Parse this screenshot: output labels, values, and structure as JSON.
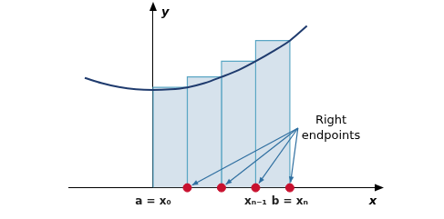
{
  "chart_data": {
    "type": "line",
    "x_label": "x",
    "y_label": "y",
    "xlim": [
      -2.48,
      6.59
    ],
    "ylim": [
      0,
      5.52
    ],
    "xticks": [
      {
        "value": 0,
        "label": "a = x₀"
      },
      {
        "value": 3,
        "label": "xₙ₋₁"
      },
      {
        "value": 4,
        "label": "b = xₙ"
      }
    ],
    "tick_labels": "x",
    "grid": false,
    "series": [
      {
        "type": "bar",
        "color": "#d6e2ec",
        "bins": [
          0,
          1,
          2,
          3,
          4
        ],
        "values": [
          3.07,
          3.39,
          3.87,
          4.5
        ]
      },
      {
        "type": "line",
        "color": "#1f3b6e",
        "x": [
          -2,
          -1.5,
          -1,
          -0.5,
          0,
          0.5,
          1,
          1.5,
          2,
          2.5,
          3,
          3.5,
          4,
          4.5
        ],
        "values": [
          3.36,
          3.2,
          3.08,
          3.01,
          2.99,
          3.01,
          3.07,
          3.2,
          3.39,
          3.6,
          3.87,
          4.17,
          4.5,
          4.95
        ]
      },
      {
        "type": "scatter",
        "color": "#c8102e",
        "marker": "circle",
        "x": [
          1,
          2,
          3,
          4
        ],
        "values": [
          0,
          0,
          0,
          0
        ]
      }
    ],
    "annotations": [
      {
        "text": "Right endpoints"
      }
    ]
  }
}
